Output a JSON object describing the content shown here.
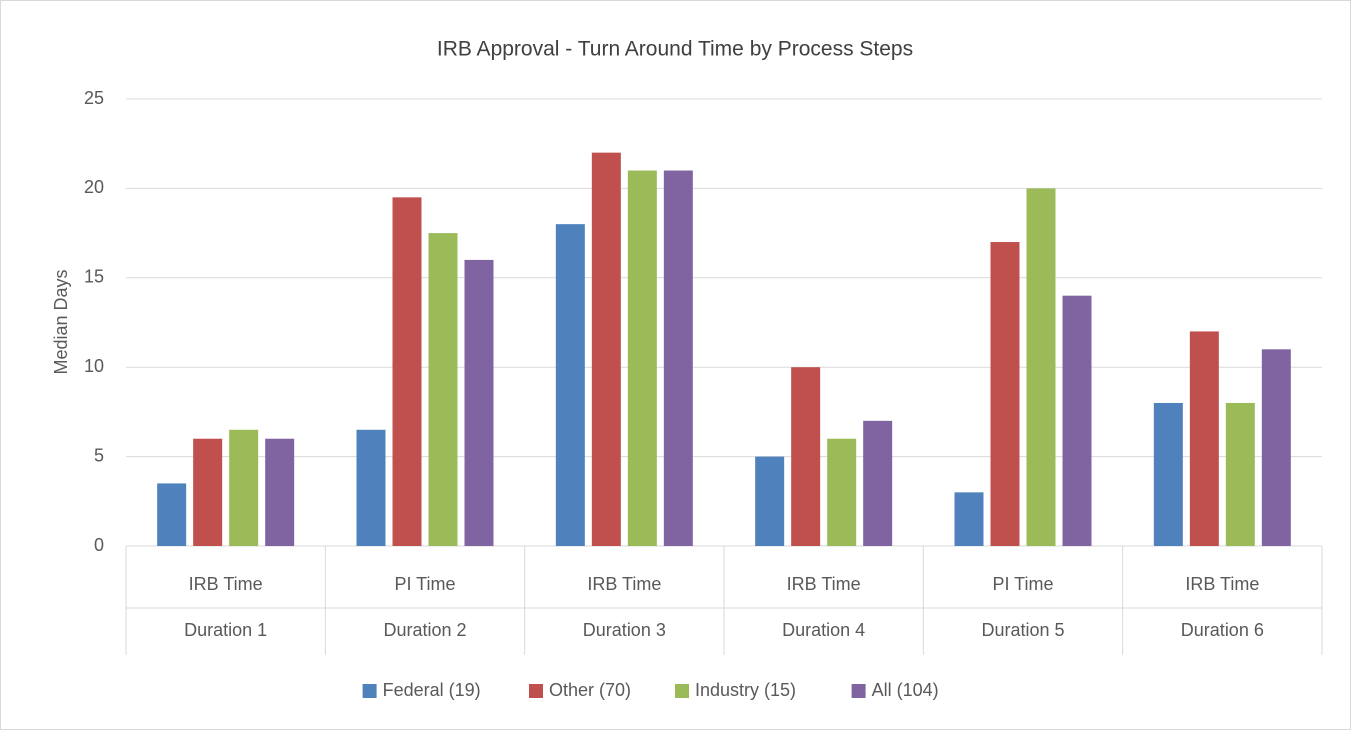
{
  "chart_data": {
    "type": "bar",
    "title": "IRB Approval - Turn Around Time by Process Steps",
    "y_label": "Median Days",
    "categories": [
      "IRB Time",
      "PI Time",
      "IRB Time",
      "IRB Time",
      "PI Time",
      "IRB Time"
    ],
    "category_groups": [
      "Duration 1",
      "Duration 2",
      "Duration 3",
      "Duration 4",
      "Duration 5",
      "Duration 6"
    ],
    "series": [
      {
        "name": "Federal (19)",
        "color": "#4f81bd",
        "values": [
          3.5,
          6.5,
          18,
          5,
          3,
          8
        ]
      },
      {
        "name": "Other (70)",
        "color": "#c0504d",
        "values": [
          6,
          19.5,
          22,
          10,
          17,
          12
        ]
      },
      {
        "name": "Industry (15)",
        "color": "#9bbb59",
        "values": [
          6.5,
          17.5,
          21,
          6,
          20,
          8
        ]
      },
      {
        "name": "All (104)",
        "color": "#8064a2",
        "values": [
          6,
          16,
          21,
          7,
          14,
          11
        ]
      }
    ],
    "ylim": [
      0,
      25
    ],
    "yticks": [
      0,
      5,
      10,
      15,
      20,
      25
    ],
    "grid": true,
    "legend": "bottom"
  }
}
